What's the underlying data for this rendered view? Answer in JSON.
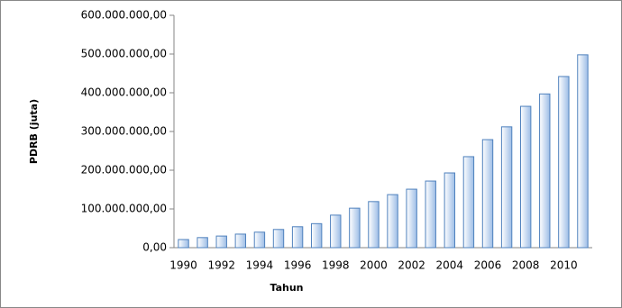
{
  "chart_data": {
    "type": "bar",
    "categories": [
      "1990",
      null,
      "1992",
      null,
      "1994",
      null,
      "1996",
      null,
      "1998",
      null,
      "2000",
      null,
      "2002",
      null,
      "2004",
      null,
      "2006",
      null,
      "2008",
      null,
      "2010",
      null
    ],
    "values": [
      21000000,
      26000000,
      30000000,
      35000000,
      40000000,
      47000000,
      54000000,
      62000000,
      84000000,
      102000000,
      119000000,
      137000000,
      151000000,
      172000000,
      193000000,
      235000000,
      279000000,
      312000000,
      365000000,
      397000000,
      442000000,
      498000000
    ],
    "color": "#9dbde6",
    "edgecolor": "#4f81bd",
    "x_label": "Tahun",
    "y_label": "PDRB (juta)",
    "ylim": [
      0,
      600000000
    ],
    "yticks": [
      {
        "value": 0,
        "label": "0,00"
      },
      {
        "value": 100000000,
        "label": "100.000.000,00"
      },
      {
        "value": 200000000,
        "label": "200.000.000,00"
      },
      {
        "value": 300000000,
        "label": "300.000.000,00"
      },
      {
        "value": 400000000,
        "label": "400.000.000,00"
      },
      {
        "value": 500000000,
        "label": "500.000.000,00"
      },
      {
        "value": 600000000,
        "label": "600.000.000,00"
      }
    ],
    "grid": false
  }
}
